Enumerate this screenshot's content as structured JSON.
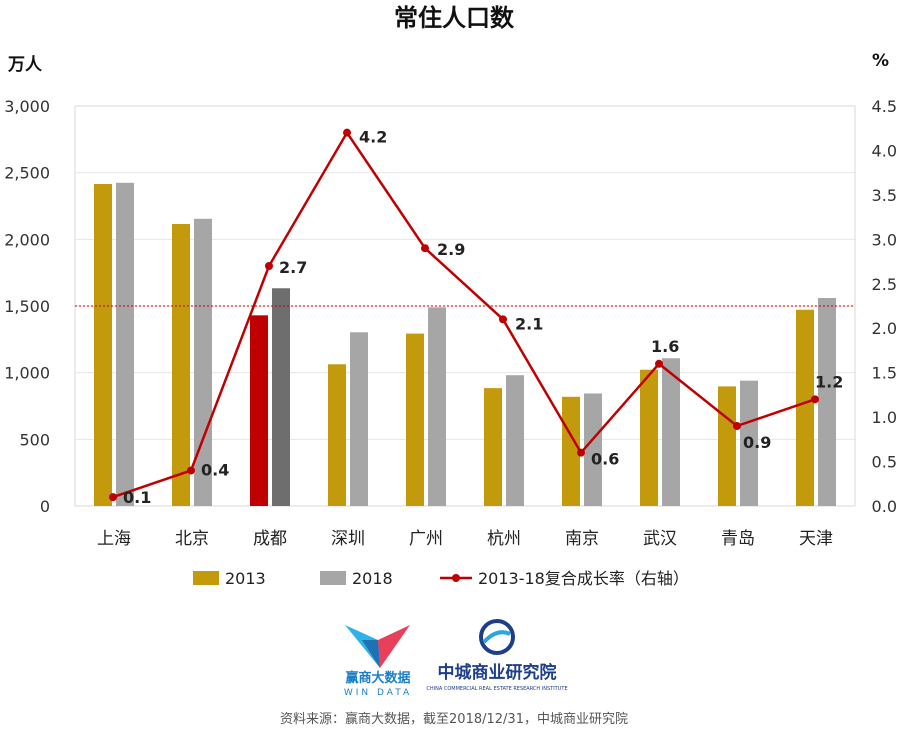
{
  "chart_data": {
    "type": "bar+line",
    "title": "常住人口数",
    "left_unit": "万人",
    "right_unit": "%",
    "categories": [
      "上海",
      "北京",
      "成都",
      "深圳",
      "广州",
      "杭州",
      "南京",
      "武汉",
      "青岛",
      "天津"
    ],
    "highlight_category": "成都",
    "series": [
      {
        "name": "2013",
        "type": "bar",
        "axis": "left",
        "values": [
          2415,
          2115,
          1430,
          1063,
          1293,
          884,
          819,
          1022,
          897,
          1472
        ]
      },
      {
        "name": "2018",
        "type": "bar",
        "axis": "left",
        "values": [
          2424,
          2154,
          1633,
          1303,
          1490,
          981,
          844,
          1108,
          940,
          1560
        ]
      },
      {
        "name": "2013-18复合成长率（右轴）",
        "type": "line",
        "axis": "right",
        "values": [
          0.1,
          0.4,
          2.7,
          4.2,
          2.9,
          2.1,
          0.6,
          1.6,
          0.9,
          1.2
        ]
      }
    ],
    "left_axis": {
      "min": 0,
      "max": 3000,
      "step": 500,
      "ticks": [
        "0",
        "500",
        "1,000",
        "1,500",
        "2,000",
        "2,500",
        "3,000"
      ]
    },
    "right_axis": {
      "min": 0,
      "max": 4.5,
      "step": 0.5,
      "ticks": [
        "0.0",
        "0.5",
        "1.0",
        "1.5",
        "2.0",
        "2.5",
        "3.0",
        "3.5",
        "4.0",
        "4.5"
      ]
    },
    "reference_line": {
      "value": 1500,
      "axis": "left",
      "style": "dotted"
    },
    "data_labels": [
      "0.1",
      "0.4",
      "2.7",
      "4.2",
      "2.9",
      "2.1",
      "0.6",
      "1.6",
      "0.9",
      "1.2"
    ],
    "colors": {
      "bar2013": "#c29a0c",
      "bar2018": "#a6a6a6",
      "bar2013_highlight": "#c00000",
      "bar2018_highlight": "#6e6e6e",
      "line": "#c00000",
      "reference": "#c00000"
    },
    "legend": [
      "2013",
      "2018",
      "2013-18复合成长率（右轴）"
    ],
    "legend_position": "bottom"
  },
  "logos": {
    "windata": {
      "name": "赢商大数据",
      "sub": "WIN DATA"
    },
    "ccre": {
      "name": "中城商业研究院",
      "sub": "CHINA COMMERCIAL REAL ESTATE RESEARCH INSTITUTE"
    }
  },
  "source": "资料来源：赢商大数据，截至2018/12/31，中城商业研究院"
}
